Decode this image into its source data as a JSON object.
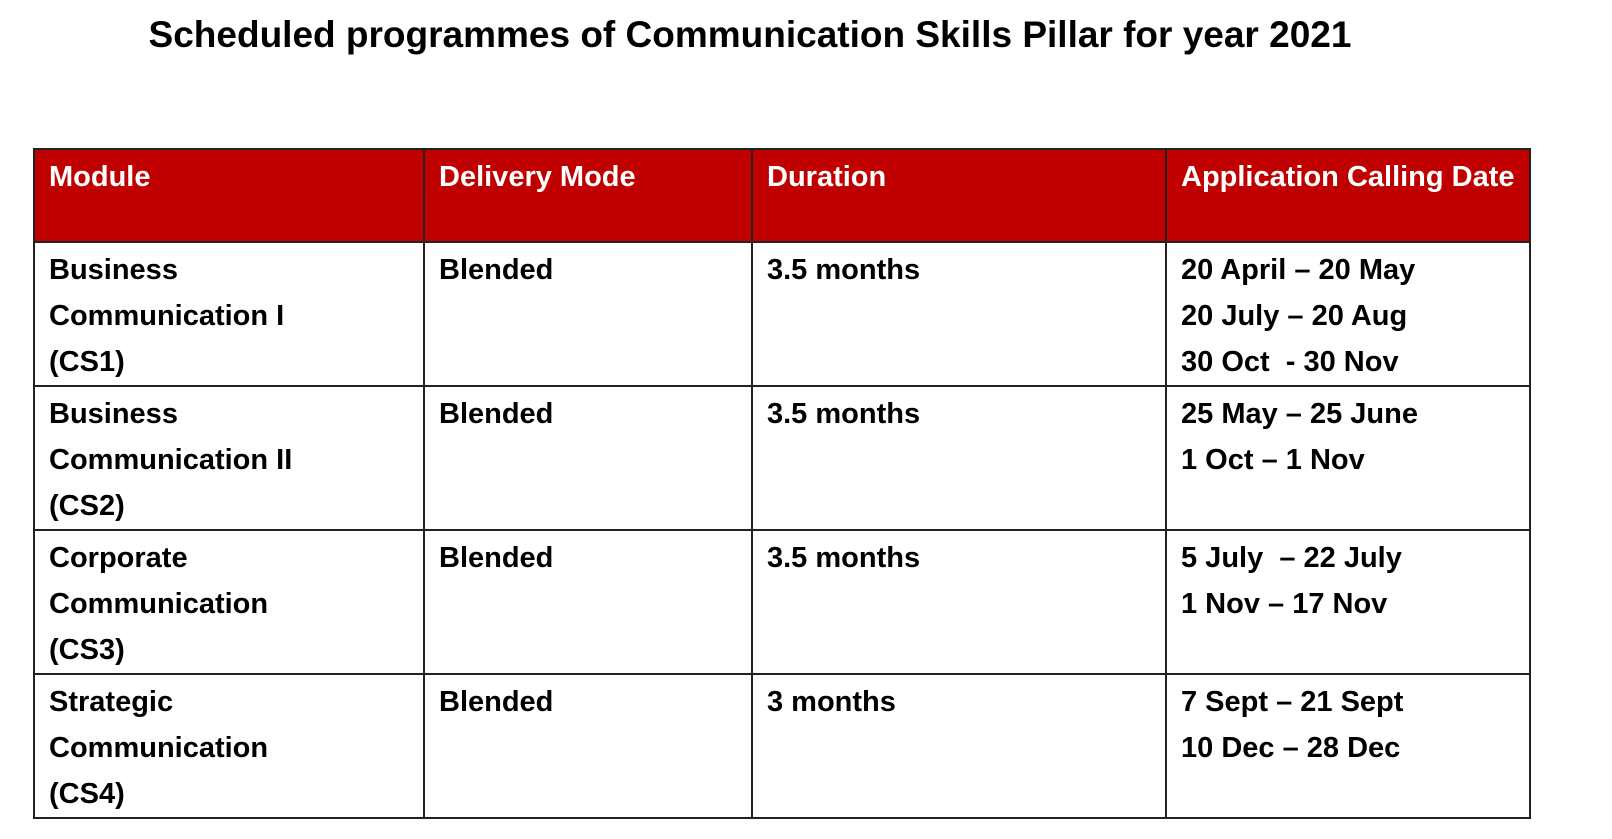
{
  "title": "Scheduled programmes of Communication Skills Pillar for year 2021",
  "table": {
    "header": [
      "Module",
      "Delivery Mode",
      "Duration",
      "Application Calling Date"
    ],
    "rows": [
      {
        "module": [
          "Business",
          "Communication I",
          "(CS1)"
        ],
        "delivery": "Blended",
        "duration": "3.5 months",
        "dates": [
          "20 April – 20 May",
          "20 July – 20 Aug",
          "30 Oct  - 30 Nov"
        ]
      },
      {
        "module": [
          "Business",
          "Communication II",
          "(CS2)"
        ],
        "delivery": "Blended",
        "duration": "3.5 months",
        "dates": [
          "25 May – 25 June",
          "1 Oct – 1 Nov"
        ]
      },
      {
        "module": [
          "Corporate",
          "Communication",
          "(CS3)"
        ],
        "delivery": "Blended",
        "duration": "3.5 months",
        "dates": [
          "5 July  – 22 July",
          "1 Nov – 17 Nov"
        ]
      },
      {
        "module": [
          "Strategic",
          "Communication",
          "(CS4)"
        ],
        "delivery": "Blended",
        "duration": "3 months",
        "dates": [
          "7 Sept – 21 Sept",
          "10 Dec – 28 Dec"
        ]
      }
    ]
  }
}
